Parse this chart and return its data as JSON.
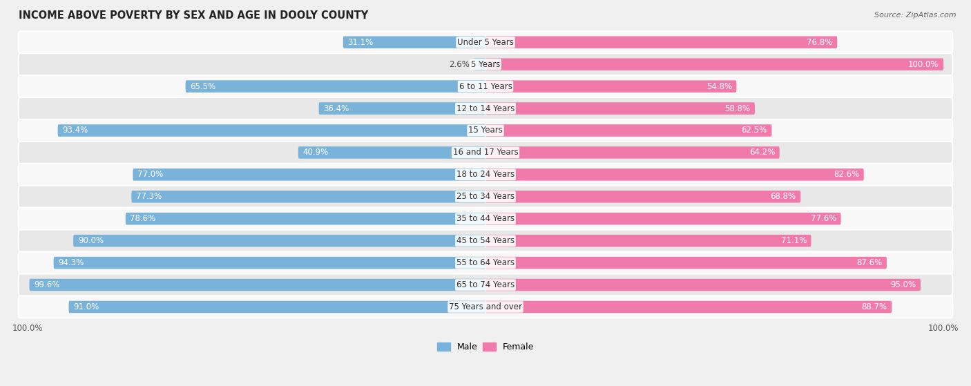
{
  "title": "INCOME ABOVE POVERTY BY SEX AND AGE IN DOOLY COUNTY",
  "source": "Source: ZipAtlas.com",
  "categories": [
    "Under 5 Years",
    "5 Years",
    "6 to 11 Years",
    "12 to 14 Years",
    "15 Years",
    "16 and 17 Years",
    "18 to 24 Years",
    "25 to 34 Years",
    "35 to 44 Years",
    "45 to 54 Years",
    "55 to 64 Years",
    "65 to 74 Years",
    "75 Years and over"
  ],
  "male_values": [
    31.1,
    2.6,
    65.5,
    36.4,
    93.4,
    40.9,
    77.0,
    77.3,
    78.6,
    90.0,
    94.3,
    99.6,
    91.0
  ],
  "female_values": [
    76.8,
    100.0,
    54.8,
    58.8,
    62.5,
    64.2,
    82.6,
    68.8,
    77.6,
    71.1,
    87.6,
    95.0,
    88.7
  ],
  "male_color": "#7ab3d9",
  "female_color": "#f07bab",
  "male_light_color": "#b8d4ea",
  "female_light_color": "#f5b8d0",
  "bar_height": 0.55,
  "bg_color": "#f0f0f0",
  "row_color_odd": "#f8f8f8",
  "row_color_even": "#e8e8e8",
  "title_fontsize": 10.5,
  "label_fontsize": 8.5,
  "value_fontsize": 8.5,
  "legend_fontsize": 9,
  "source_fontsize": 8,
  "xlim": 100
}
